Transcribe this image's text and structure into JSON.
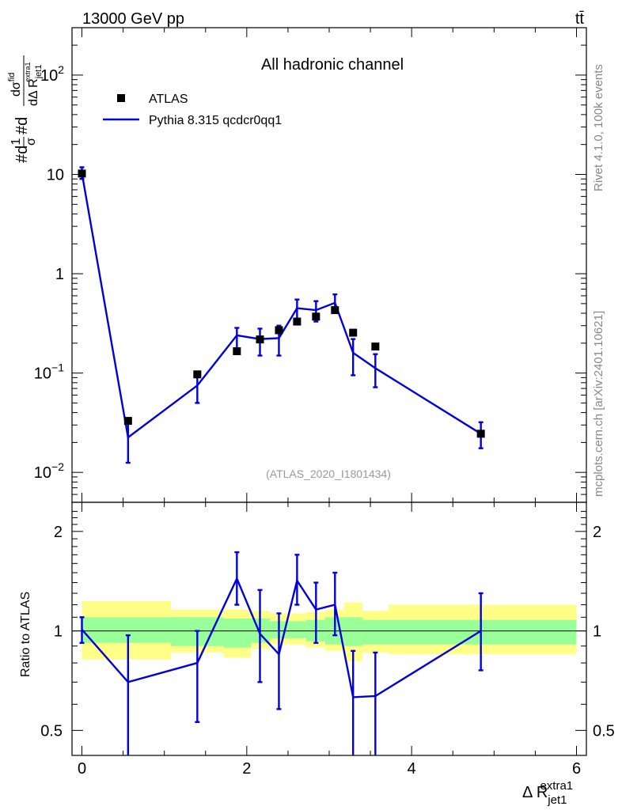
{
  "header": {
    "energy_label": "13000 GeV pp",
    "process_label": "tt̄"
  },
  "side_labels": {
    "rivet": "Rivet 4.1.0,  100k events",
    "mcplots": "mcplots.cern.ch [arXiv:2401.10621]"
  },
  "colors": {
    "mc_line": "#0000dd",
    "data_marker": "#000000",
    "band_green": "#99ff99",
    "band_yellow": "#ffff88",
    "watermark": "#999999",
    "side_text": "#888888"
  },
  "chart_data": [
    {
      "type": "scatter+line",
      "panel": "main",
      "title": "All hadronic channel",
      "analysis_tag": "(ATLAS_2020_I1801434)",
      "xlabel": "Δ R",
      "xlabel_sup": "extra1",
      "xlabel_sub": "jet1",
      "ylabel": {
        "prefix": "#d",
        "frac1_num": "1",
        "frac1_den": "σ",
        "mid": "#d",
        "frac2_num": "dσ",
        "frac2_num_sup": "fid",
        "frac2_den": "dΔ R",
        "frac2_den_sub": "jet1",
        "frac2_den_sup": "extra1"
      },
      "xlim": [
        -0.12,
        6.12
      ],
      "ylim": [
        0.005,
        300
      ],
      "yscale": "log",
      "y_ticks": [
        {
          "value": 0.01,
          "base": "10",
          "exp": "−2"
        },
        {
          "value": 0.1,
          "base": "10",
          "exp": "−1"
        },
        {
          "value": 1,
          "base": "1",
          "exp": ""
        },
        {
          "value": 10,
          "base": "10",
          "exp": ""
        },
        {
          "value": 100,
          "base": "10",
          "exp": "2"
        }
      ],
      "legend": {
        "placement": "top-left",
        "entries": [
          {
            "label": "ATLAS",
            "kind": "marker"
          },
          {
            "label": "Pythia 8.315 qcdcr0qq1",
            "kind": "line"
          }
        ]
      },
      "series": [
        {
          "name": "ATLAS",
          "x": [
            0.0,
            0.56,
            1.4,
            1.88,
            2.16,
            2.39,
            2.61,
            2.84,
            3.07,
            3.29,
            3.56,
            4.84
          ],
          "y": [
            10.2,
            0.033,
            0.097,
            0.166,
            0.218,
            0.27,
            0.33,
            0.37,
            0.43,
            0.255,
            0.185,
            0.0245
          ]
        },
        {
          "name": "Pythia 8.315 qcdcr0qq1",
          "x": [
            0.0,
            0.56,
            1.4,
            1.88,
            2.16,
            2.39,
            2.61,
            2.84,
            3.07,
            3.29,
            3.56,
            4.84
          ],
          "y": [
            10.3,
            0.0225,
            0.075,
            0.24,
            0.22,
            0.225,
            0.45,
            0.43,
            0.51,
            0.16,
            0.112,
            0.0245
          ],
          "err_low": [
            9.0,
            0.0125,
            0.05,
            0.175,
            0.15,
            0.15,
            0.35,
            0.33,
            0.41,
            0.095,
            0.072,
            0.0175
          ],
          "err_high": [
            11.8,
            0.032,
            0.1,
            0.285,
            0.28,
            0.3,
            0.55,
            0.53,
            0.62,
            0.22,
            0.155,
            0.032
          ]
        }
      ]
    },
    {
      "type": "ratio",
      "panel": "ratio",
      "ylabel": "Ratio to ATLAS",
      "ylim": [
        0.42,
        2.45
      ],
      "yscale": "log",
      "y_ticks": [
        0.5,
        1,
        2
      ],
      "x_ticks": [
        0,
        2,
        4,
        6
      ],
      "bins": [
        0.0,
        0.05,
        1.08,
        1.72,
        2.05,
        2.28,
        2.5,
        2.72,
        2.95,
        3.18,
        3.4,
        3.72,
        6.0
      ],
      "band_green": [
        [
          0.92,
          1.1
        ],
        [
          0.92,
          1.1
        ],
        [
          0.9,
          1.1
        ],
        [
          0.89,
          1.09
        ],
        [
          0.92,
          1.09
        ],
        [
          0.95,
          1.07
        ],
        [
          0.95,
          1.07
        ],
        [
          0.93,
          1.08
        ],
        [
          0.91,
          1.1
        ],
        [
          0.9,
          1.1
        ],
        [
          0.91,
          1.08
        ],
        [
          0.91,
          1.08
        ]
      ],
      "band_yellow": [
        [
          0.82,
          1.23
        ],
        [
          0.82,
          1.23
        ],
        [
          0.86,
          1.16
        ],
        [
          0.83,
          1.16
        ],
        [
          0.88,
          1.15
        ],
        [
          0.91,
          1.13
        ],
        [
          0.91,
          1.13
        ],
        [
          0.89,
          1.14
        ],
        [
          0.87,
          1.16
        ],
        [
          0.81,
          1.22
        ],
        [
          0.86,
          1.15
        ],
        [
          0.85,
          1.2
        ]
      ],
      "series": [
        {
          "name": "Pythia 8.315 qcdcr0qq1",
          "x": [
            0.0,
            0.56,
            1.4,
            1.88,
            2.16,
            2.39,
            2.61,
            2.84,
            3.07,
            3.29,
            3.56,
            4.84
          ],
          "y": [
            1.01,
            0.7,
            0.8,
            1.44,
            0.98,
            0.85,
            1.42,
            1.16,
            1.2,
            0.63,
            0.635,
            1.0
          ],
          "err_low": [
            0.92,
            0.35,
            0.53,
            1.2,
            0.7,
            0.58,
            1.2,
            0.92,
            0.97,
            0.33,
            0.33,
            0.76
          ],
          "err_high": [
            1.1,
            0.97,
            1.0,
            1.73,
            1.33,
            1.13,
            1.7,
            1.4,
            1.5,
            0.87,
            0.86,
            1.3
          ]
        }
      ]
    }
  ]
}
